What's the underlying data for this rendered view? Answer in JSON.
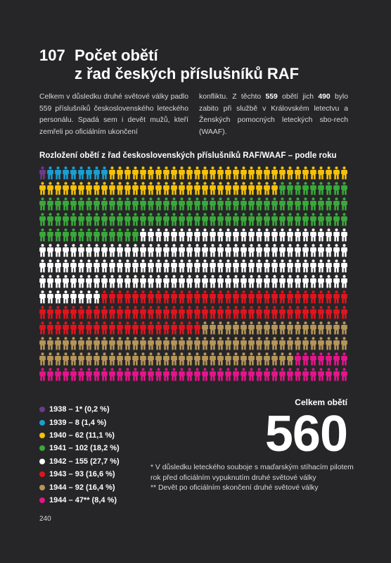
{
  "header": {
    "number": "107",
    "title_line1": "Počet obětí",
    "title_line2": "z řad českých příslušníků RAF"
  },
  "intro": {
    "col1": "Celkem v důsledku druhé světové války padlo 559 příslušníků československého leteckého personálu. Spadá sem i devět mužů, kteří zemřeli po oficiálním ukončení",
    "col2_a": "konfliktu. Z těchto ",
    "col2_b": "559",
    "col2_c": " obětí jich ",
    "col2_d": "490",
    "col2_e": " bylo zabito při službě v Královském letectvu a Ženských pomocných leteckých sbo-rech (WAAF)."
  },
  "chart_data": {
    "type": "pictogram",
    "title": "Rozložení obětí z řad československých příslušníků RAF/WAAF – podle roku",
    "unit": "1 figure = 1 person",
    "categories": [
      "1938",
      "1939",
      "1940",
      "1941",
      "1942",
      "1943",
      "1944",
      "1944"
    ],
    "values": [
      1,
      8,
      62,
      102,
      155,
      93,
      92,
      47
    ],
    "labels": [
      "1938 – 1* (0,2 %)",
      "1939 – 8 (1,4 %)",
      "1940 – 62 (11,1 %)",
      "1941 – 102 (18,2 %)",
      "1942 – 155 (27,7 %)",
      "1943 – 93 (16,6 %)",
      "1944 – 92 (16,4 %)",
      "1944 – 47** (8,4 %)"
    ],
    "colors": [
      "#6b3a8c",
      "#1a9fd0",
      "#f5c10a",
      "#3aa93a",
      "#ffffff",
      "#e0141e",
      "#b6955a",
      "#e4158a"
    ],
    "per_row": 40,
    "total_label": "Celkem obětí",
    "total_value": "560"
  },
  "footnotes": {
    "note1": "* V důsledku leteckého souboje s maďarským stíhacím pilotem rok před oficiálním vypuknutím druhé světové války",
    "note2": "** Devět po oficiálním skončení druhé světové války"
  },
  "page_number": "240"
}
